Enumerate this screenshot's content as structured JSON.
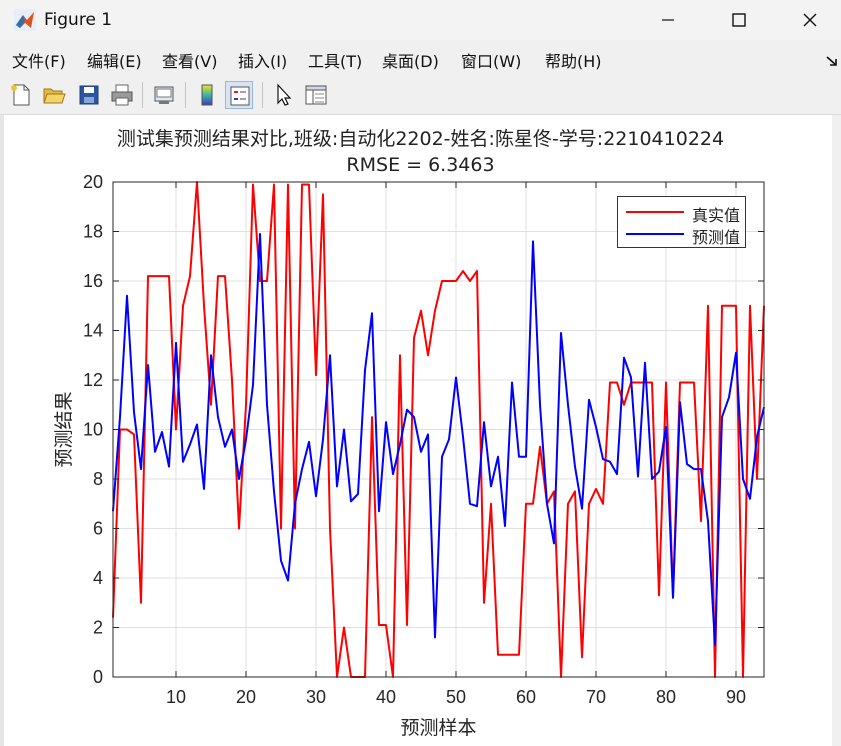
{
  "window": {
    "title": "Figure 1"
  },
  "menu": [
    "文件(F)",
    "编辑(E)",
    "查看(V)",
    "插入(I)",
    "工具(T)",
    "桌面(D)",
    "窗口(W)",
    "帮助(H)"
  ],
  "toolbar": {
    "icons": [
      "new-figure-icon",
      "open-file-icon",
      "save-icon",
      "print-icon",
      "link-plot-icon",
      "colorbar-icon",
      "legend-icon",
      "pointer-icon",
      "property-inspector-icon"
    ],
    "active": "legend-icon"
  },
  "plot": {
    "title_line1": "测试集预测结果对比,班级:自动化2202-姓名:陈星佟-学号:2210410224",
    "title_line2": "RMSE = 6.3463"
  },
  "legend": {
    "entries": [
      "真实值",
      "预测值"
    ]
  },
  "colors": {
    "actual": "#ff0000",
    "predicted": "#0000ff",
    "grid": "#dfdfdf",
    "axis": "#262626"
  },
  "chart_data": {
    "type": "line",
    "xlabel": "预测样本",
    "ylabel": "预测结果",
    "xlim": [
      1,
      94
    ],
    "ylim": [
      0,
      20
    ],
    "xticks": [
      10,
      20,
      30,
      40,
      50,
      60,
      70,
      80,
      90
    ],
    "yticks": [
      0,
      2,
      4,
      6,
      8,
      10,
      12,
      14,
      16,
      18,
      20
    ],
    "grid": true,
    "legend_position": "top-right",
    "x": [
      1,
      2,
      3,
      4,
      5,
      6,
      7,
      8,
      9,
      10,
      11,
      12,
      13,
      14,
      15,
      16,
      17,
      18,
      19,
      20,
      21,
      22,
      23,
      24,
      25,
      26,
      27,
      28,
      29,
      30,
      31,
      32,
      33,
      34,
      35,
      36,
      37,
      38,
      39,
      40,
      41,
      42,
      43,
      44,
      45,
      46,
      47,
      48,
      49,
      50,
      51,
      52,
      53,
      54,
      55,
      56,
      57,
      58,
      59,
      60,
      61,
      62,
      63,
      64,
      65,
      66,
      67,
      68,
      69,
      70,
      71,
      72,
      73,
      74,
      75,
      76,
      77,
      78,
      79,
      80,
      81,
      82,
      83,
      84,
      85,
      86,
      87,
      88,
      89,
      90,
      91,
      92,
      93,
      94
    ],
    "series": [
      {
        "name": "真实值",
        "values": [
          2.4,
          10,
          10,
          9.8,
          3,
          16.2,
          16.2,
          16.2,
          16.2,
          10,
          15,
          16.2,
          20,
          15,
          11,
          16.2,
          16.2,
          12,
          6,
          11,
          19.9,
          16,
          16,
          19.9,
          6,
          19.9,
          6,
          19.9,
          19.9,
          12.2,
          19.5,
          6,
          0,
          2,
          0,
          0,
          0,
          10.5,
          2.1,
          2.1,
          0,
          13,
          2.1,
          13.7,
          14.8,
          13,
          14.8,
          16,
          16,
          16,
          16.4,
          16,
          16.4,
          3,
          7,
          0.9,
          0.9,
          0.9,
          0.9,
          7,
          7,
          9.3,
          7,
          7.5,
          0,
          7,
          7.5,
          0.8,
          7,
          7.6,
          7,
          11.9,
          11.9,
          11,
          11.9,
          11.9,
          11.9,
          11.9,
          3.3,
          11.9,
          3.3,
          11.9,
          11.9,
          11.9,
          6.3,
          15,
          0,
          15,
          15,
          15,
          0,
          15,
          8,
          15
        ]
      },
      {
        "name": "预测值",
        "values": [
          6.7,
          10.5,
          15.4,
          10.7,
          8.4,
          12.6,
          9.1,
          9.9,
          8.5,
          13.5,
          8.7,
          9.4,
          10.2,
          7.6,
          13,
          10.5,
          9.3,
          10,
          8,
          9.6,
          11.8,
          17.9,
          11,
          7.5,
          4.7,
          3.9,
          7,
          8.4,
          9.5,
          7.3,
          9.6,
          13,
          7.7,
          10,
          7.1,
          7.4,
          12.4,
          14.7,
          6.7,
          10.3,
          8.2,
          9.4,
          10.8,
          10.5,
          9.1,
          9.8,
          1.6,
          8.9,
          9.6,
          12.1,
          9.7,
          7,
          6.9,
          10.3,
          7.7,
          8.9,
          6.1,
          11.9,
          8.9,
          8.9,
          17.6,
          11,
          7,
          5.4,
          13.9,
          11,
          8.5,
          6.8,
          11.2,
          10.1,
          8.8,
          8.7,
          8.2,
          12.9,
          12.1,
          8.1,
          12.7,
          8,
          8.3,
          10.1,
          3.2,
          11.1,
          8.6,
          8.4,
          8.4,
          6.3,
          1.3,
          10.5,
          11.3,
          13.1,
          8,
          7.2,
          9.7,
          10.9
        ]
      }
    ]
  }
}
